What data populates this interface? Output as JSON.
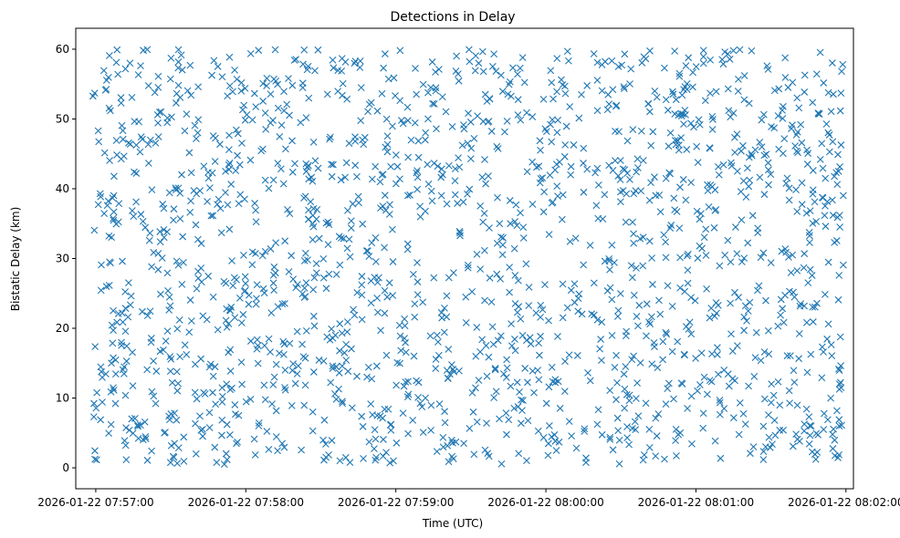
{
  "chart_data": {
    "type": "scatter",
    "title": "Detections in Delay",
    "xlabel": "Time (UTC)",
    "ylabel": "Bistatic Delay (km)",
    "marker": "x",
    "color": "#1f77b4",
    "x_unit": "seconds since 2026-01-22 07:57:00",
    "xlim": [
      -8,
      303
    ],
    "ylim": [
      -3,
      63
    ],
    "xticks": [
      0,
      60,
      120,
      180,
      240,
      300
    ],
    "xtick_labels": [
      "2026-01-22 07:57:00",
      "2026-01-22 07:58:00",
      "2026-01-22 07:59:00",
      "2026-01-22 08:00:00",
      "2026-01-22 08:01:00",
      "2026-01-22 08:02:00"
    ],
    "yticks": [
      0,
      10,
      20,
      30,
      40,
      50,
      60
    ],
    "ytick_labels": [
      "0",
      "10",
      "20",
      "30",
      "40",
      "50",
      "60"
    ],
    "grid": false,
    "approx_point_count": 1800,
    "x_range": [
      -2,
      299
    ],
    "y_range": [
      0.5,
      60
    ],
    "distribution": "approximately uniform over the x and y ranges (points generated from seed)",
    "seed": 20260122
  }
}
